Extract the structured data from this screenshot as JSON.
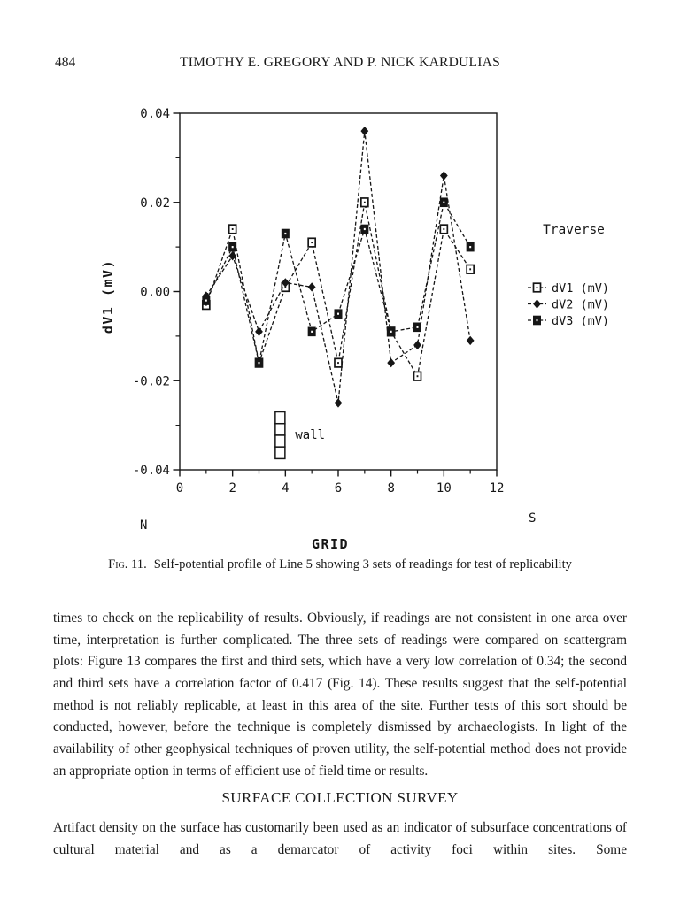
{
  "page": {
    "number": "484",
    "running_head": "TIMOTHY E. GREGORY AND P. NICK KARDULIAS"
  },
  "figure": {
    "caption_label": "Fig. 11.",
    "caption_text": "Self-potential profile of Line 5 showing 3 sets of readings for test of replicability"
  },
  "chart_data": {
    "type": "line",
    "title": "",
    "xlabel": "GRID",
    "ylabel": "dV1 (mV)",
    "xlim": [
      0,
      12
    ],
    "ylim": [
      -0.04,
      0.04
    ],
    "x_tick_step": 2,
    "x_minor_step": 1,
    "y_tick_step": 0.02,
    "y_minor_step": 0.01,
    "grid": false,
    "line_style": "dashed",
    "line_color": "#161616",
    "legend_title": "Traverse",
    "legend_position": "right-outside",
    "x": [
      1,
      2,
      3,
      4,
      5,
      6,
      7,
      8,
      9,
      10,
      11
    ],
    "series": [
      {
        "name": "dV1 (mV)",
        "marker": "open-square",
        "values": [
          -0.003,
          0.014,
          -0.016,
          0.001,
          0.011,
          -0.016,
          0.02,
          -0.009,
          -0.019,
          0.014,
          0.005
        ]
      },
      {
        "name": "dV2 (mV)",
        "marker": "filled-diamond",
        "values": [
          -0.001,
          0.008,
          -0.009,
          0.002,
          0.001,
          -0.025,
          0.036,
          -0.016,
          -0.012,
          0.026,
          -0.011
        ]
      },
      {
        "name": "dV3 (mV)",
        "marker": "filled-square",
        "values": [
          -0.002,
          0.01,
          -0.016,
          0.013,
          -0.009,
          -0.005,
          0.014,
          -0.009,
          -0.008,
          0.02,
          0.01
        ]
      }
    ],
    "annotations": {
      "wall": {
        "label": "wall",
        "x": 3.8,
        "y_top": -0.027,
        "y_bottom": -0.0375,
        "segments": 4
      },
      "north": "N",
      "south": "S"
    }
  },
  "body": {
    "paragraph1": "times to check on the replicability of results. Obviously, if readings are not consistent in one area over time, interpretation is further complicated. The three sets of readings were compared on scattergram plots: Figure 13 compares the first and third sets, which have a very low correlation of 0.34; the second and third sets have a correlation factor of 0.417 (Fig. 14). These results suggest that the self-potential method is not reliably replicable, at least in this area of the site. Further tests of this sort should be conducted, however, before the technique is completely dismissed by archaeologists. In light of the availability of other geophysical techniques of proven utility, the self-potential method does not provide an appropriate option in terms of efficient use of field time or results.",
    "section_heading": "SURFACE COLLECTION SURVEY",
    "paragraph2": "Artifact density on the surface has customarily been used as an indicator of subsurface concentrations of cultural material and as a demarcator of activity foci within sites. Some"
  }
}
